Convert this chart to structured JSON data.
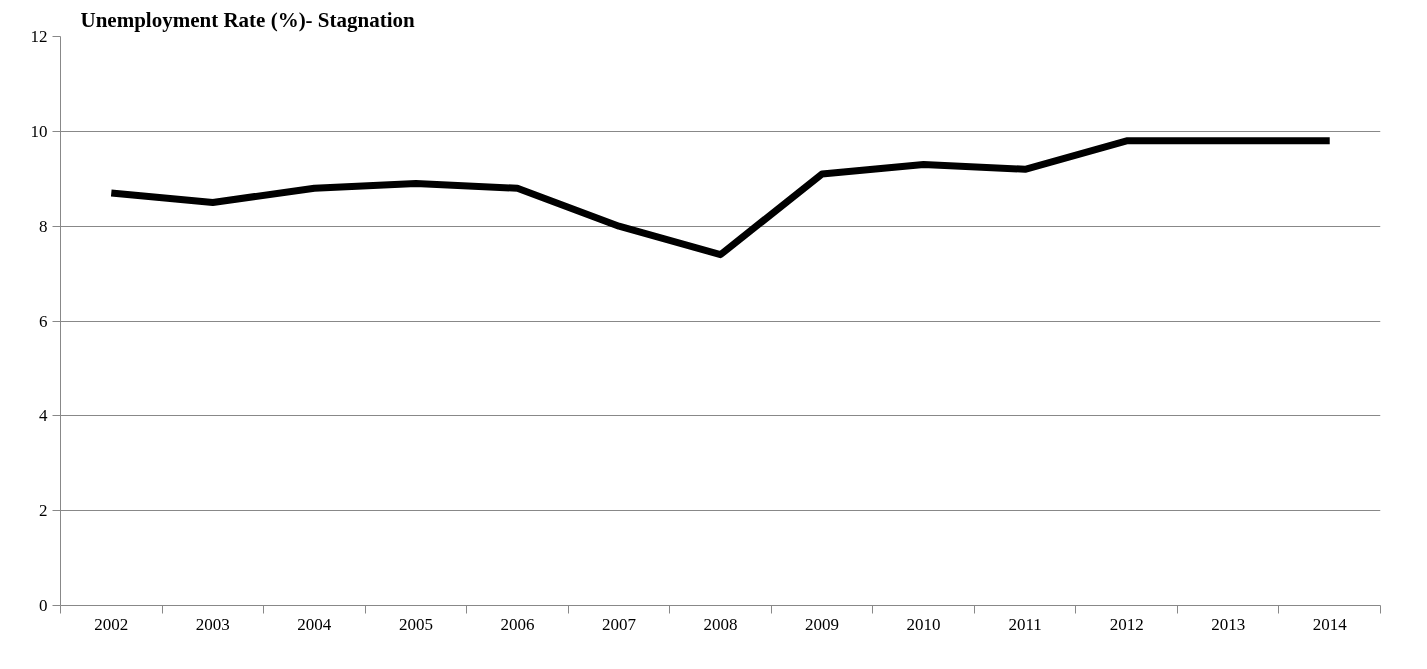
{
  "chart_data": {
    "type": "line",
    "title": "Unemployment Rate (%)- Stagnation",
    "categories": [
      "2002",
      "2003",
      "2004",
      "2005",
      "2006",
      "2007",
      "2008",
      "2009",
      "2010",
      "2011",
      "2012",
      "2013",
      "2014"
    ],
    "series": [
      {
        "color": "#000000",
        "values": [
          8.7,
          8.5,
          8.8,
          8.9,
          8.8,
          8.0,
          7.4,
          9.1,
          9.3,
          9.2,
          9.8,
          9.8,
          9.8
        ]
      }
    ],
    "ylim": [
      0,
      12
    ],
    "yticks": [
      0,
      2,
      4,
      6,
      8,
      10,
      12
    ],
    "grid": "y",
    "marker": "none",
    "line_style": "solid"
  }
}
